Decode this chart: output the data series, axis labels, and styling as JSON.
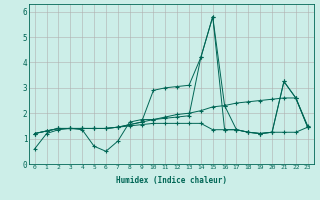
{
  "xlabel": "Humidex (Indice chaleur)",
  "bg_color": "#cceee8",
  "grid_color": "#b0b0b0",
  "line_color": "#006655",
  "xlim": [
    -0.5,
    23.5
  ],
  "ylim": [
    0,
    6.3
  ],
  "xticks": [
    0,
    1,
    2,
    3,
    4,
    5,
    6,
    7,
    8,
    9,
    10,
    11,
    12,
    13,
    14,
    15,
    16,
    17,
    18,
    19,
    20,
    21,
    22,
    23
  ],
  "yticks": [
    0,
    1,
    2,
    3,
    4,
    5,
    6
  ],
  "series": [
    [
      0.6,
      1.2,
      1.35,
      1.4,
      1.35,
      0.7,
      0.5,
      0.9,
      1.65,
      1.75,
      1.75,
      1.8,
      1.85,
      1.9,
      4.2,
      5.8,
      2.3,
      1.35,
      1.25,
      1.2,
      1.25,
      3.25,
      2.6,
      1.45
    ],
    [
      1.2,
      1.3,
      1.4,
      1.4,
      1.4,
      1.4,
      1.4,
      1.45,
      1.55,
      1.65,
      1.75,
      1.85,
      1.95,
      2.0,
      2.1,
      2.25,
      2.3,
      2.4,
      2.45,
      2.5,
      2.55,
      2.6,
      2.6,
      1.5
    ],
    [
      1.2,
      1.3,
      1.4,
      1.4,
      1.4,
      1.4,
      1.4,
      1.45,
      1.55,
      1.65,
      2.9,
      3.0,
      3.05,
      3.1,
      4.2,
      5.8,
      1.35,
      1.35,
      1.25,
      1.2,
      1.25,
      3.25,
      2.6,
      1.45
    ],
    [
      1.2,
      1.3,
      1.4,
      1.4,
      1.4,
      1.4,
      1.4,
      1.45,
      1.5,
      1.55,
      1.6,
      1.6,
      1.6,
      1.6,
      1.6,
      1.35,
      1.35,
      1.35,
      1.25,
      1.2,
      1.25,
      1.25,
      1.25,
      1.45
    ]
  ]
}
